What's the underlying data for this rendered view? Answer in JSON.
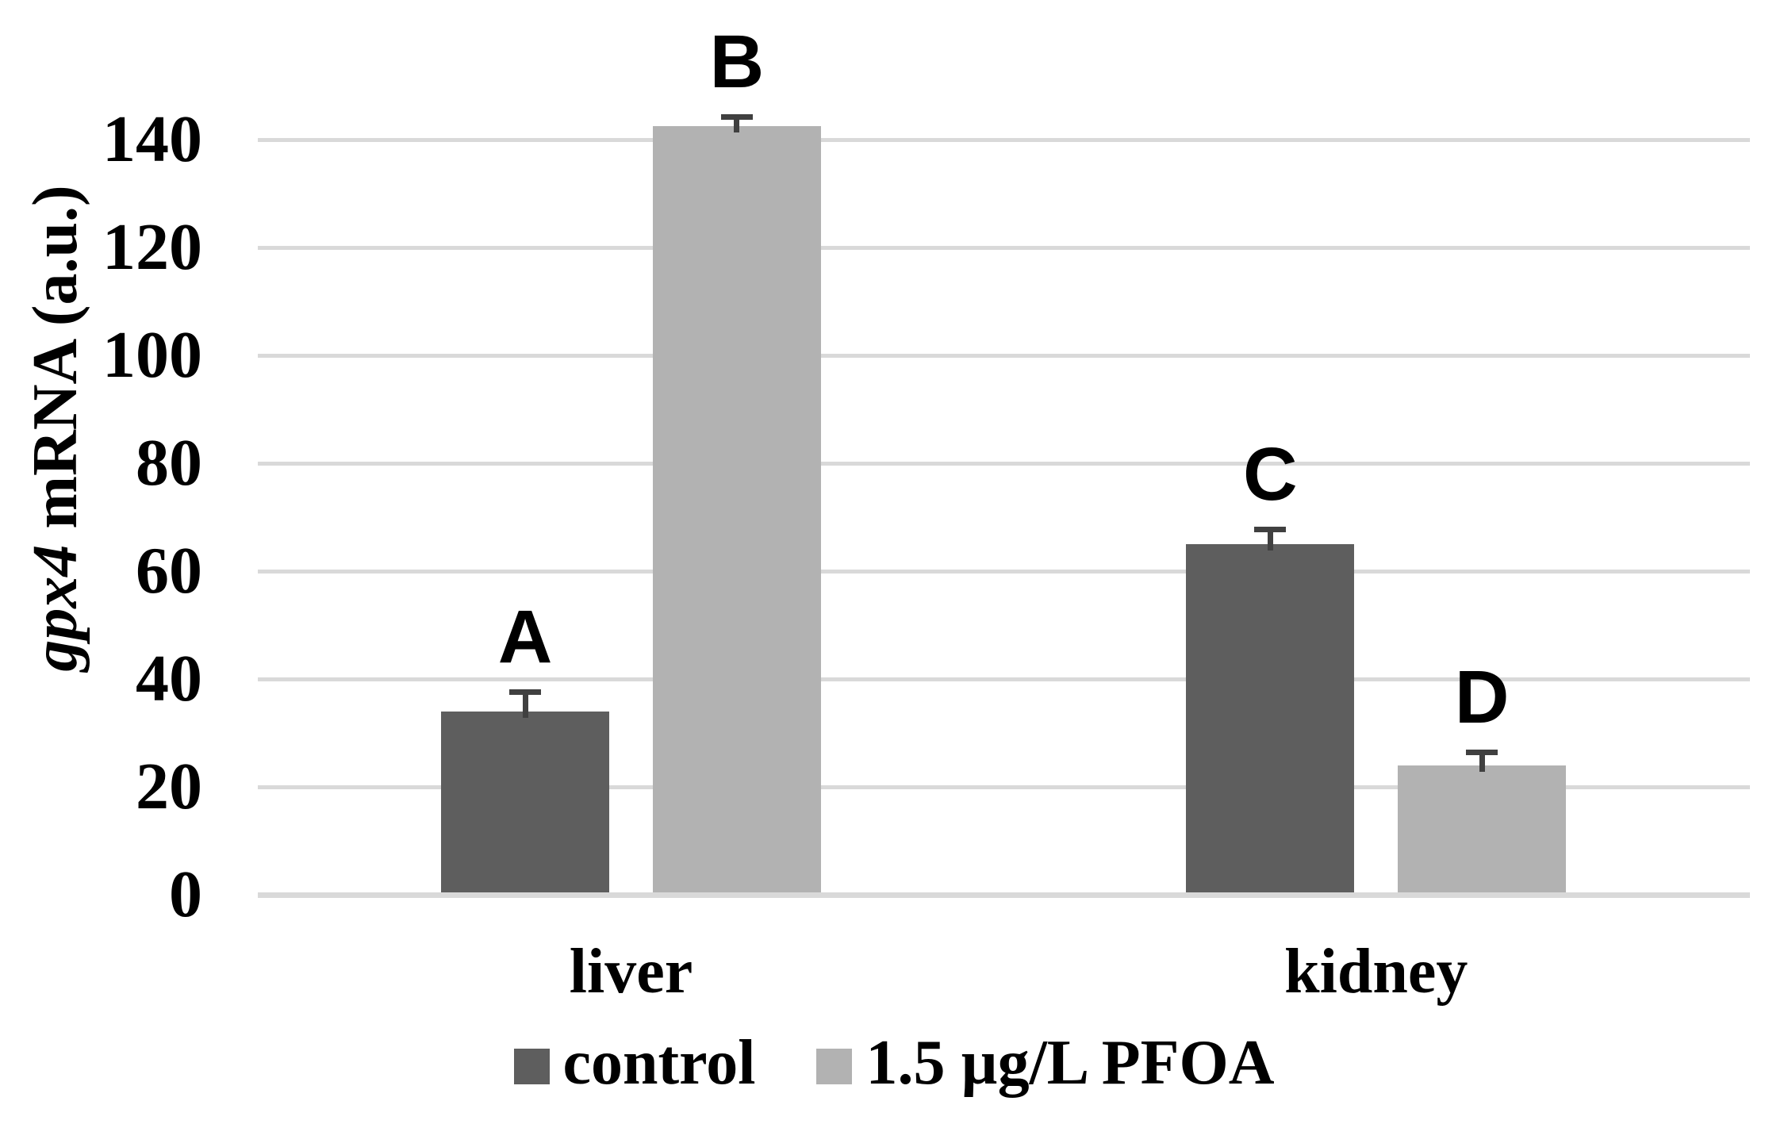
{
  "chart_data": {
    "type": "bar",
    "title": "",
    "categories": [
      "liver",
      "kidney"
    ],
    "series": [
      {
        "name": "control",
        "color": "#5E5E5E",
        "values": [
          34,
          65
        ],
        "errors_plus": [
          3.7,
          2.8
        ],
        "sig_letters": [
          "A",
          "C"
        ]
      },
      {
        "name": "1.5 µg/L PFOA",
        "color": "#B2B2B2",
        "values": [
          142.5,
          24
        ],
        "errors_plus": [
          1.8,
          2.4
        ],
        "sig_letters": [
          "B",
          "D"
        ]
      }
    ],
    "ylabel_italic": "gpx4",
    "ylabel_rest": " mRNA (a.u.)",
    "xlabel": "",
    "ylim": [
      0,
      150
    ],
    "yticks": [
      0,
      20,
      40,
      60,
      80,
      100,
      120,
      140
    ],
    "grid": "horizontal",
    "gridline_color": "#D9D9D9",
    "axis_line_color": "#D9D9D9",
    "error_bar_color": "#404040",
    "text_color": "#000000",
    "legend_position": "bottom"
  }
}
